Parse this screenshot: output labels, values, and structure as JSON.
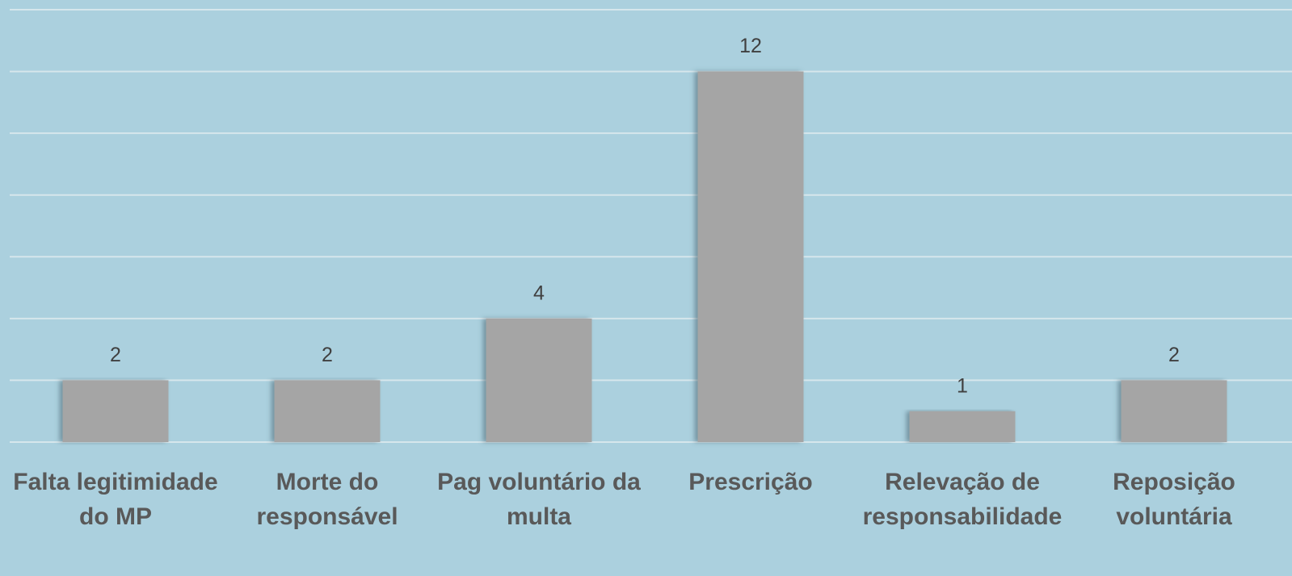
{
  "chart_data": {
    "type": "bar",
    "categories": [
      "Falta legitimidade do MP",
      "Morte do responsável",
      "Pag voluntário da multa",
      "Prescrição",
      "Relevação de responsabilidade",
      "Reposição voluntária"
    ],
    "values": [
      2,
      2,
      4,
      12,
      1,
      2
    ],
    "color": "#a5a5a5",
    "ylim": [
      0,
      14
    ],
    "yticks": [
      0,
      2,
      4,
      6,
      8,
      10,
      12,
      14
    ],
    "grid": true
  }
}
